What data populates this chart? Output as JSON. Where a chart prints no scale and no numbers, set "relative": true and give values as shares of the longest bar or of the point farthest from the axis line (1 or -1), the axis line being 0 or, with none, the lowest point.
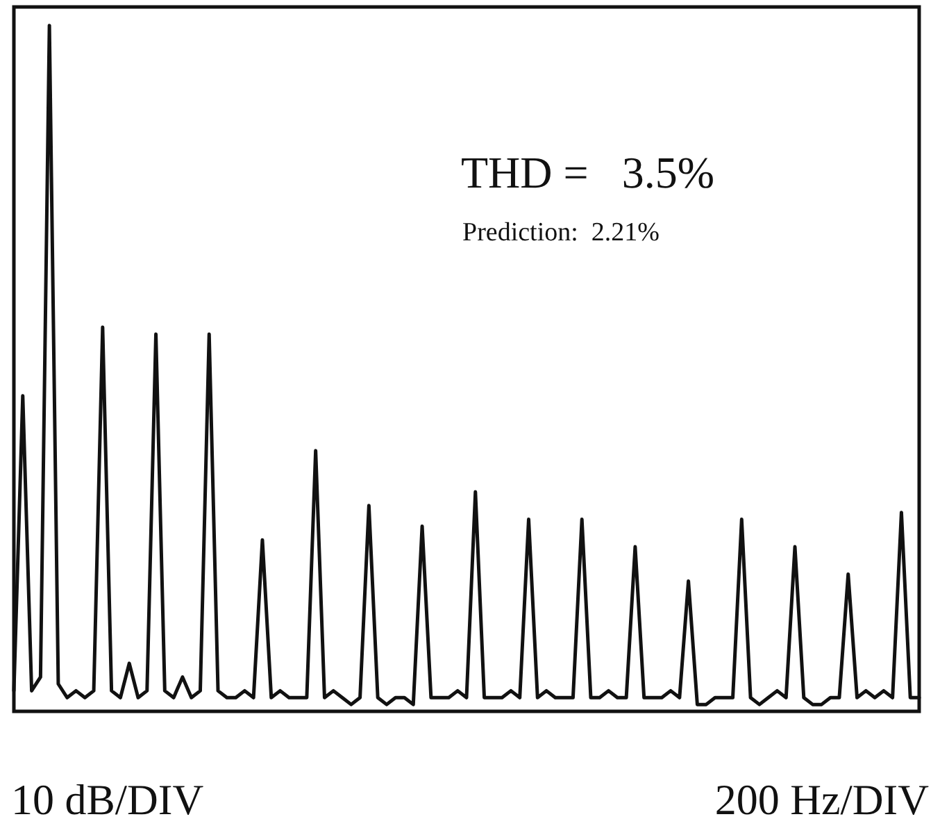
{
  "chart_data": {
    "type": "line",
    "relative": true,
    "line_style": "solid",
    "annotations": [
      "THD =   3.5%",
      "Prediction:  2.21%",
      "10 dB/DIV",
      "200 Hz/DIV"
    ],
    "categories": [
      null,
      null,
      null,
      null,
      null,
      null,
      null,
      null,
      null,
      null,
      null,
      null,
      null,
      null,
      null,
      null,
      null,
      null,
      null,
      null,
      null,
      null,
      null,
      null,
      null,
      null,
      null,
      null,
      null,
      null,
      null,
      null,
      null,
      null,
      null,
      null,
      null,
      null,
      null,
      null,
      null,
      null,
      null,
      null,
      null,
      null,
      null,
      null,
      null,
      null,
      null,
      null,
      null,
      null,
      null,
      null,
      null,
      null,
      null,
      null,
      null,
      null,
      null,
      null,
      null,
      null,
      null,
      null,
      null,
      null,
      null,
      null,
      null,
      null,
      null,
      null,
      null,
      null,
      null,
      null,
      null,
      null,
      null,
      null,
      null,
      null,
      null,
      null,
      null,
      null,
      null,
      null,
      null,
      null,
      null,
      null,
      null,
      null,
      null,
      null,
      null,
      null,
      null
    ],
    "series": [
      {
        "color": "#111111",
        "values": [
          0.03,
          0.46,
          0.03,
          0.05,
          1,
          0.04,
          0.02,
          0.03,
          0.02,
          0.03,
          0.56,
          0.03,
          0.02,
          0.07,
          0.02,
          0.03,
          0.55,
          0.03,
          0.02,
          0.05,
          0.02,
          0.03,
          0.55,
          0.03,
          0.02,
          0.02,
          0.03,
          0.02,
          0.25,
          0.02,
          0.03,
          0.02,
          0.02,
          0.02,
          0.38,
          0.02,
          0.03,
          0.02,
          0.01,
          0.02,
          0.3,
          0.02,
          0.01,
          0.02,
          0.02,
          0.01,
          0.27,
          0.02,
          0.02,
          0.02,
          0.03,
          0.02,
          0.32,
          0.02,
          0.02,
          0.02,
          0.03,
          0.02,
          0.28,
          0.02,
          0.03,
          0.02,
          0.02,
          0.02,
          0.28,
          0.02,
          0.02,
          0.03,
          0.02,
          0.02,
          0.24,
          0.02,
          0.02,
          0.02,
          0.03,
          0.02,
          0.19,
          0.01,
          0.01,
          0.02,
          0.02,
          0.02,
          0.28,
          0.02,
          0.01,
          0.02,
          0.03,
          0.02,
          0.24,
          0.02,
          0.01,
          0.01,
          0.02,
          0.02,
          0.2,
          0.02,
          0.03,
          0.02,
          0.03,
          0.02,
          0.29,
          0.02,
          0.02
        ]
      }
    ]
  }
}
